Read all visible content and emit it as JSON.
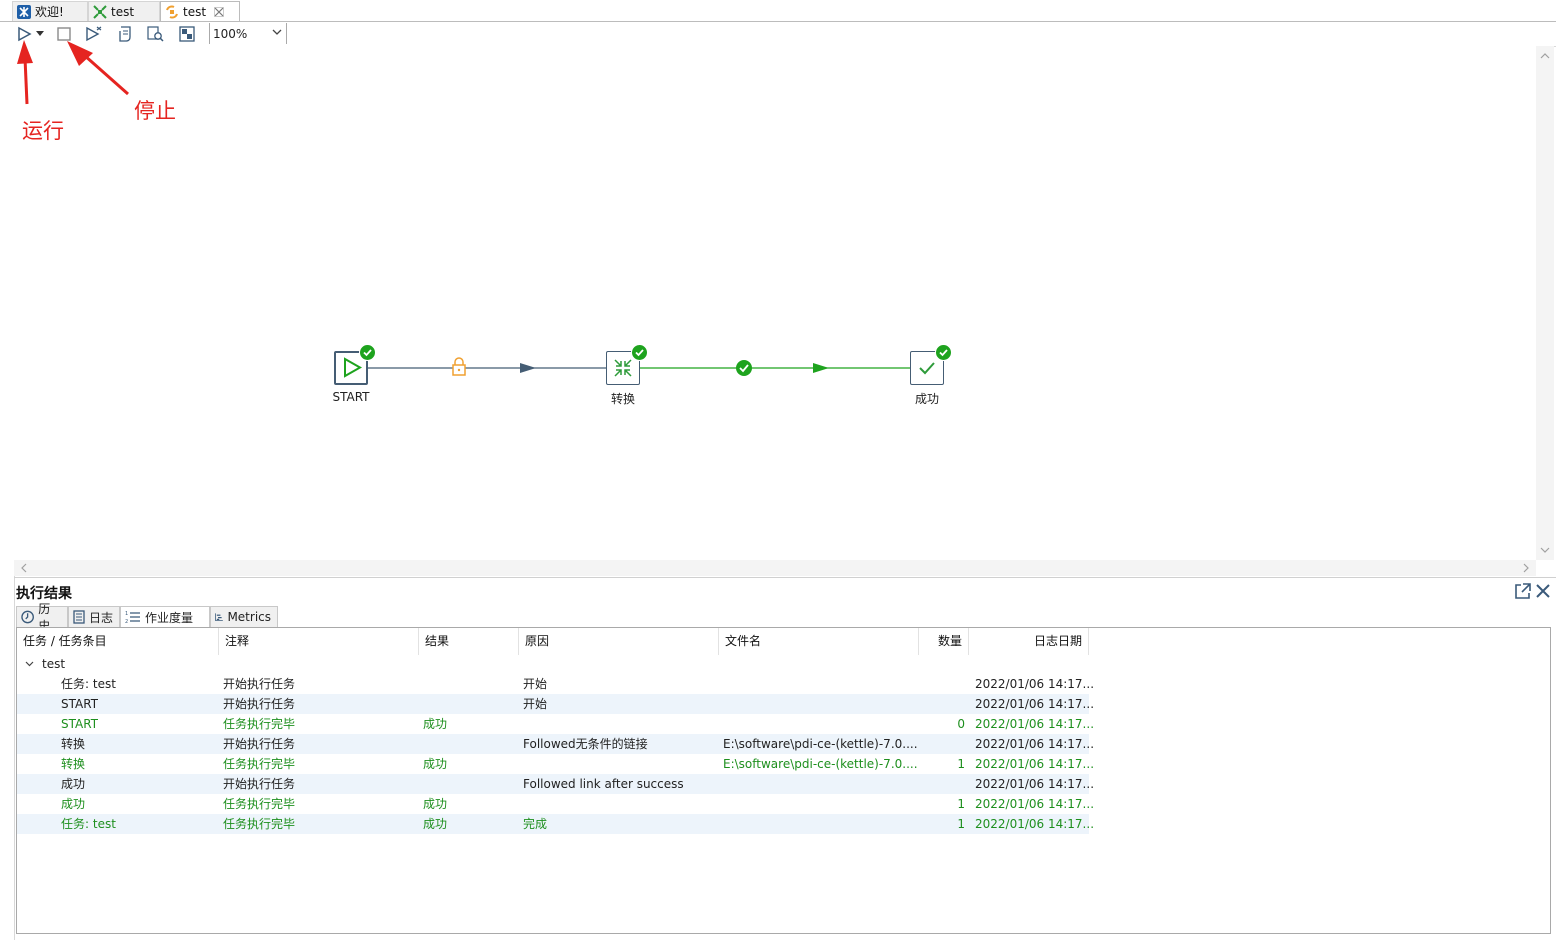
{
  "tabs": [
    {
      "label": "欢迎!",
      "icon": "kettle-logo-icon"
    },
    {
      "label": "test",
      "icon": "transformation-icon"
    },
    {
      "label": "test",
      "icon": "job-icon"
    }
  ],
  "toolbar": {
    "zoom_value": "100%"
  },
  "annotations": {
    "run_label": "运行",
    "stop_label": "停止"
  },
  "flow": {
    "nodes": [
      {
        "label": "START",
        "icon": "start-play-icon"
      },
      {
        "label": "转换",
        "icon": "transformation-icon"
      },
      {
        "label": "成功",
        "icon": "success-check-icon"
      }
    ],
    "hops": [
      {
        "type": "unconditional",
        "icon": "lock-icon",
        "color": "#455d74"
      },
      {
        "type": "on-success",
        "icon": "check-icon",
        "color": "#1ea31e"
      }
    ]
  },
  "results": {
    "title": "执行结果",
    "tabs": [
      {
        "label": "历史",
        "icon": "history-clock-icon"
      },
      {
        "label": "日志",
        "icon": "log-doc-icon"
      },
      {
        "label": "作业度量",
        "icon": "metrics-list-icon"
      },
      {
        "label": "Metrics",
        "icon": "metrics-chart-icon"
      }
    ],
    "columns": [
      "任务 / 任务条目",
      "注释",
      "结果",
      "原因",
      "文件名",
      "数量",
      "日志日期"
    ],
    "group": "test",
    "rows": [
      {
        "task": "任务: test",
        "comment": "开始执行任务",
        "result": "",
        "reason": "开始",
        "file": "",
        "count": "",
        "date": "2022/01/06 14:17...",
        "green": false
      },
      {
        "task": "START",
        "comment": "开始执行任务",
        "result": "",
        "reason": "开始",
        "file": "",
        "count": "",
        "date": "2022/01/06 14:17...",
        "green": false
      },
      {
        "task": "START",
        "comment": "任务执行完毕",
        "result": "成功",
        "reason": "",
        "file": "",
        "count": "0",
        "date": "2022/01/06 14:17...",
        "green": true
      },
      {
        "task": "转换",
        "comment": "开始执行任务",
        "result": "",
        "reason": "Followed无条件的链接",
        "file": "E:\\software\\pdi-ce-(kettle)-7.0....",
        "count": "",
        "date": "2022/01/06 14:17...",
        "green": false
      },
      {
        "task": "转换",
        "comment": "任务执行完毕",
        "result": "成功",
        "reason": "",
        "file": "E:\\software\\pdi-ce-(kettle)-7.0....",
        "count": "1",
        "date": "2022/01/06 14:17...",
        "green": true
      },
      {
        "task": "成功",
        "comment": "开始执行任务",
        "result": "",
        "reason": "Followed link after success",
        "file": "",
        "count": "",
        "date": "2022/01/06 14:17...",
        "green": false
      },
      {
        "task": "成功",
        "comment": "任务执行完毕",
        "result": "成功",
        "reason": "",
        "file": "",
        "count": "1",
        "date": "2022/01/06 14:17...",
        "green": true
      },
      {
        "task": "任务: test",
        "comment": "任务执行完毕",
        "result": "成功",
        "reason": "完成",
        "file": "",
        "count": "1",
        "date": "2022/01/06 14:17...",
        "green": true
      }
    ]
  }
}
